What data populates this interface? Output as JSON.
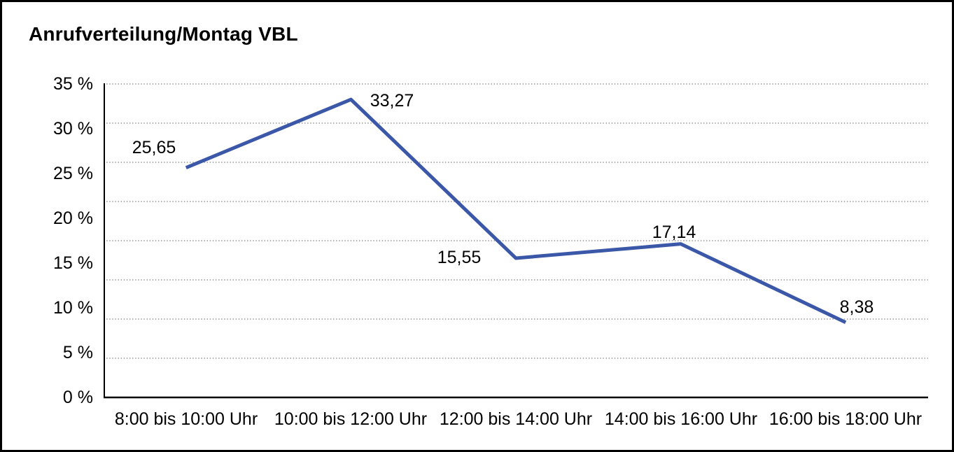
{
  "chart_data": {
    "type": "line",
    "title": "Anrufverteilung/Montag VBL",
    "categories": [
      "8:00 bis 10:00 Uhr",
      "10:00 bis 12:00 Uhr",
      "12:00 bis 14:00 Uhr",
      "14:00 bis 16:00 Uhr",
      "16:00 bis 18:00 Uhr"
    ],
    "values": [
      25.65,
      33.27,
      15.55,
      17.14,
      8.38
    ],
    "point_labels": [
      "25,65",
      "33,27",
      "15,55",
      "17,14",
      "8,38"
    ],
    "y_tick_labels": [
      "35 %",
      "30 %",
      "25 %",
      "20 %",
      "15 %",
      "10 %",
      "5 %",
      "0 %"
    ],
    "ylim": [
      0,
      35
    ],
    "y_tick_step": 5,
    "unit": "%",
    "xlabel": "",
    "ylabel": "",
    "grid": "horizontal-dotted",
    "legend": "none",
    "line_color": "#3A57A8",
    "axis_color": "#000000",
    "gridline_color": "#808080",
    "background_color": "#ffffff"
  }
}
